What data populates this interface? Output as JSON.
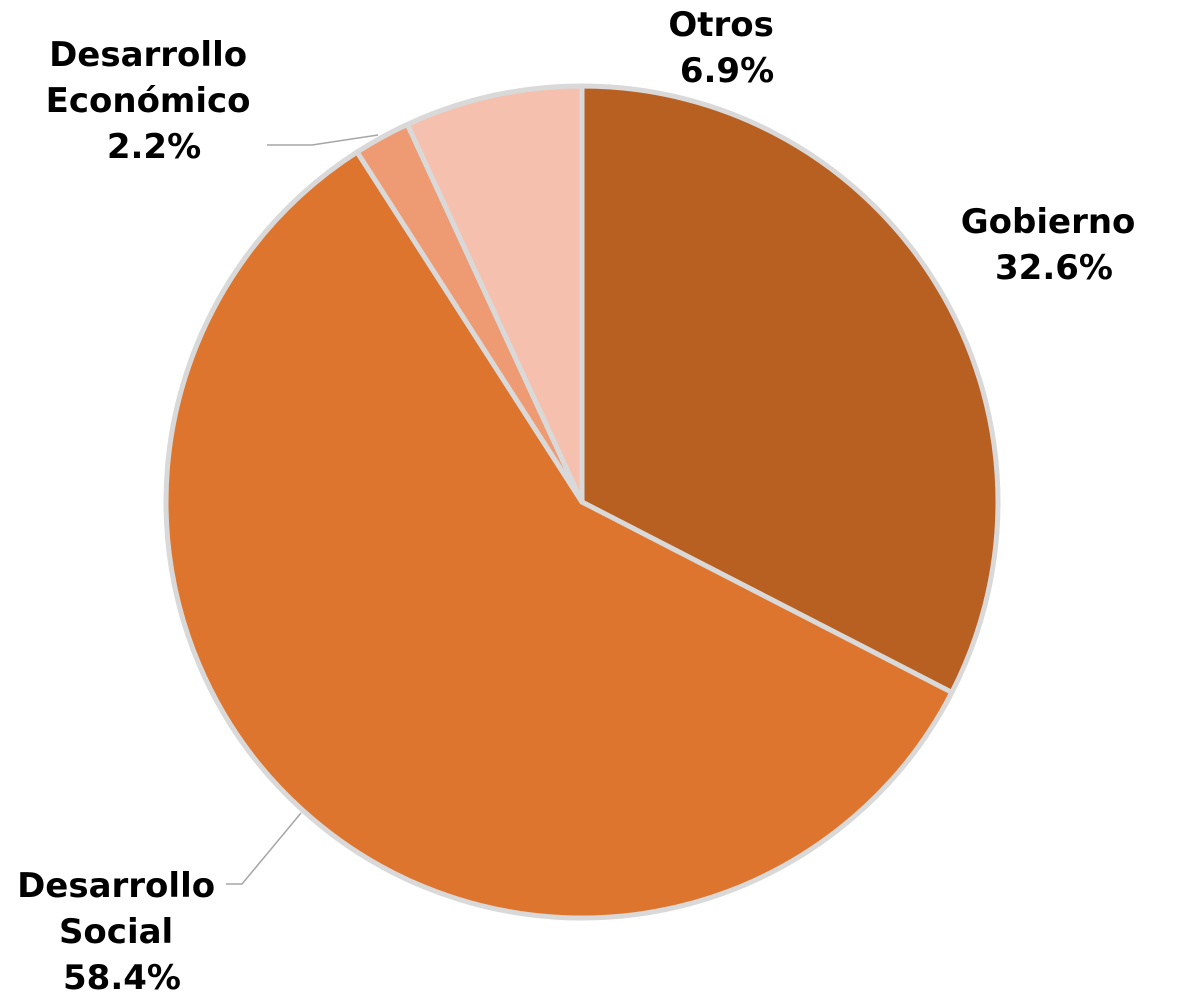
{
  "chart_data": {
    "type": "pie",
    "title": "",
    "legend": "none",
    "slices": [
      {
        "key": "gobierno",
        "label_lines": [
          "Gobierno"
        ],
        "value": 32.6,
        "value_label": "32.6%",
        "color": "#b85f22"
      },
      {
        "key": "social",
        "label_lines": [
          "Desarrollo",
          "Social"
        ],
        "value": 58.4,
        "value_label": "58.4%",
        "color": "#de752e"
      },
      {
        "key": "economico",
        "label_lines": [
          "Desarrollo",
          "Económico"
        ],
        "value": 2.2,
        "value_label": "2.2%",
        "color": "#ee9a72"
      },
      {
        "key": "otros",
        "label_lines": [
          "Otros"
        ],
        "value": 6.9,
        "value_label": "6.9%",
        "color": "#f5c1ae"
      }
    ]
  }
}
